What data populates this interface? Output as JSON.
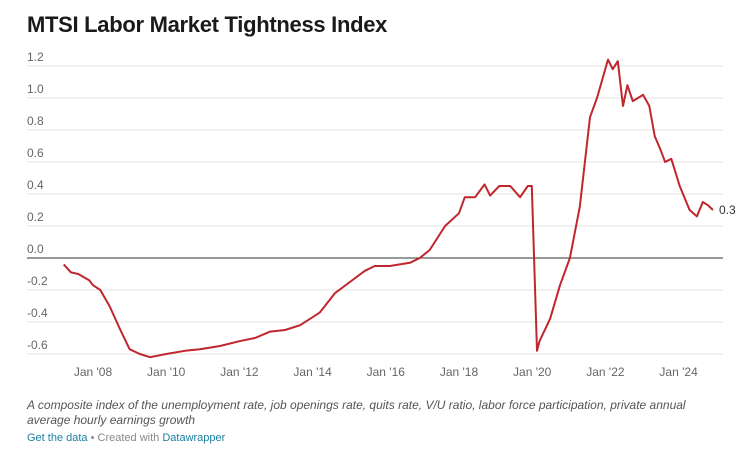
{
  "chart_data": {
    "type": "line",
    "title": "MTSI Labor Market Tightness Index",
    "notes": "A composite index of the unemployment rate, job openings rate, quits rate, V/U ratio, labor force participation, private annual average hourly earnings growth",
    "source_link": "Get the data",
    "credit": "• Created with",
    "credit_link": "Datawrapper",
    "xlim": [
      2006.7,
      2025.5
    ],
    "xticks": [
      {
        "value": 2008,
        "label": "Jan '08"
      },
      {
        "value": 2010,
        "label": "Jan '10"
      },
      {
        "value": 2012,
        "label": "Jan '12"
      },
      {
        "value": 2014,
        "label": "Jan '14"
      },
      {
        "value": 2016,
        "label": "Jan '16"
      },
      {
        "value": 2018,
        "label": "Jan '18"
      },
      {
        "value": 2020,
        "label": "Jan '20"
      },
      {
        "value": 2022,
        "label": "Jan '22"
      },
      {
        "value": 2024,
        "label": "Jan '24"
      }
    ],
    "ylim": [
      -0.65,
      1.25
    ],
    "yticks": [
      -0.6,
      -0.4,
      -0.2,
      {
        "value": 0,
        "label": "0.0"
      },
      0.2,
      0.4,
      0.6,
      0.8,
      {
        "value": 1,
        "label": "1.0"
      },
      1.2
    ],
    "grid": true,
    "series": [
      {
        "name": "MTSI",
        "color": "#c0262d",
        "x": [
          2007.2,
          2007.4,
          2007.6,
          2007.9,
          2008.0,
          2008.2,
          2008.45,
          2008.75,
          2009.0,
          2009.28,
          2009.56,
          2010.0,
          2010.51,
          2010.92,
          2011.47,
          2012.0,
          2012.43,
          2012.84,
          2013.25,
          2013.66,
          2014.0,
          2014.2,
          2014.61,
          2015.02,
          2015.43,
          2015.7,
          2016.11,
          2016.66,
          2016.93,
          2017.2,
          2017.62,
          2018.0,
          2018.16,
          2018.44,
          2018.7,
          2018.85,
          2019.1,
          2019.4,
          2019.67,
          2019.88,
          2019.99,
          2020.13,
          2020.2,
          2020.49,
          2020.76,
          2021.03,
          2021.3,
          2021.44,
          2021.58,
          2021.77,
          2022.07,
          2022.2,
          2022.34,
          2022.48,
          2022.6,
          2022.75,
          2023.03,
          2023.2,
          2023.35,
          2023.5,
          2023.63,
          2023.8,
          2024.03,
          2024.3,
          2024.5,
          2024.66,
          2024.8,
          2024.94
        ],
        "values": [
          -0.04,
          -0.09,
          -0.1,
          -0.14,
          -0.17,
          -0.2,
          -0.3,
          -0.45,
          -0.57,
          -0.6,
          -0.62,
          -0.6,
          -0.58,
          -0.57,
          -0.55,
          -0.52,
          -0.5,
          -0.46,
          -0.45,
          -0.42,
          -0.37,
          -0.34,
          -0.22,
          -0.15,
          -0.08,
          -0.05,
          -0.05,
          -0.03,
          0.0,
          0.05,
          0.2,
          0.28,
          0.38,
          0.38,
          0.46,
          0.39,
          0.45,
          0.45,
          0.38,
          0.45,
          0.45,
          -0.58,
          -0.52,
          -0.38,
          -0.17,
          0.0,
          0.32,
          0.6,
          0.88,
          1.0,
          1.24,
          1.18,
          1.23,
          0.95,
          1.08,
          0.98,
          1.02,
          0.95,
          0.76,
          0.68,
          0.6,
          0.62,
          0.45,
          0.3,
          0.26,
          0.35,
          0.33,
          0.3
        ]
      }
    ]
  }
}
